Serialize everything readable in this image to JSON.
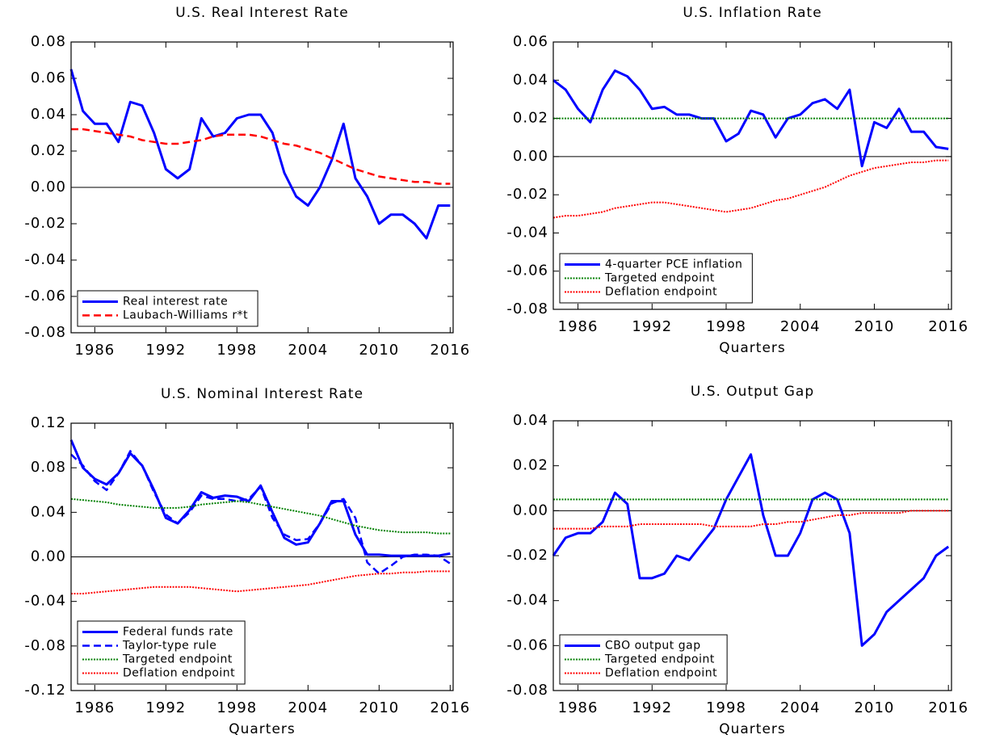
{
  "chart_data": [
    {
      "type": "line",
      "title": "U.S. Real Interest Rate",
      "x": [
        1984,
        1985,
        1986,
        1987,
        1988,
        1989,
        1990,
        1991,
        1992,
        1993,
        1994,
        1995,
        1996,
        1997,
        1998,
        1999,
        2000,
        2001,
        2002,
        2003,
        2004,
        2005,
        2006,
        2007,
        2008,
        2009,
        2010,
        2011,
        2012,
        2013,
        2014,
        2015,
        2016
      ],
      "xlim": [
        1984,
        2016.25
      ],
      "xticks": [
        1986,
        1992,
        1998,
        2004,
        2010,
        2016
      ],
      "ylim": [
        -0.08,
        0.08
      ],
      "yticks": [
        -0.08,
        -0.06,
        -0.04,
        -0.02,
        {
          "value": 0,
          "label": "0.00"
        },
        0.02,
        0.04,
        0.06,
        0.08
      ],
      "zero_line": true,
      "legend": "lower left",
      "series": [
        {
          "name": "Real interest rate",
          "color": "#0000ff",
          "style": "solid",
          "values": [
            0.065,
            0.042,
            0.035,
            0.035,
            0.025,
            0.047,
            0.045,
            0.03,
            0.01,
            0.005,
            0.01,
            0.038,
            0.028,
            0.03,
            0.038,
            0.04,
            0.04,
            0.03,
            0.008,
            -0.005,
            -0.01,
            0,
            0.015,
            0.035,
            0.005,
            -0.005,
            -0.02,
            -0.015,
            -0.015,
            -0.02,
            -0.028,
            -0.01,
            -0.01
          ]
        },
        {
          "name": "Laubach-Williams r*t",
          "color": "#ff0000",
          "style": "dashed",
          "values": [
            0.032,
            0.032,
            0.031,
            0.03,
            0.029,
            0.028,
            0.026,
            0.025,
            0.024,
            0.024,
            0.025,
            0.026,
            0.028,
            0.029,
            0.029,
            0.029,
            0.028,
            0.026,
            0.024,
            0.023,
            0.021,
            0.019,
            0.016,
            0.013,
            0.01,
            0.008,
            0.006,
            0.005,
            0.004,
            0.003,
            0.003,
            0.002,
            0.002
          ]
        }
      ]
    },
    {
      "type": "line",
      "title": "U.S. Inflation Rate",
      "xlabel": "Quarters",
      "x": [
        1984,
        1985,
        1986,
        1987,
        1988,
        1989,
        1990,
        1991,
        1992,
        1993,
        1994,
        1995,
        1996,
        1997,
        1998,
        1999,
        2000,
        2001,
        2002,
        2003,
        2004,
        2005,
        2006,
        2007,
        2008,
        2009,
        2010,
        2011,
        2012,
        2013,
        2014,
        2015,
        2016
      ],
      "xlim": [
        1984,
        2016.25
      ],
      "xticks": [
        1986,
        1992,
        1998,
        2004,
        2010,
        2016
      ],
      "ylim": [
        -0.08,
        0.06
      ],
      "yticks": [
        -0.08,
        -0.06,
        -0.04,
        -0.02,
        {
          "value": 0,
          "label": "0.00"
        },
        0.02,
        0.04,
        0.06
      ],
      "zero_line": true,
      "legend": "lower left",
      "series": [
        {
          "name": "4-quarter PCE inflation",
          "color": "#0000ff",
          "style": "solid",
          "values": [
            0.04,
            0.035,
            0.025,
            0.018,
            0.035,
            0.045,
            0.042,
            0.035,
            0.025,
            0.026,
            0.022,
            0.022,
            0.02,
            0.02,
            0.008,
            0.012,
            0.024,
            0.022,
            0.01,
            0.02,
            0.022,
            0.028,
            0.03,
            0.025,
            0.035,
            -0.005,
            0.018,
            0.015,
            0.025,
            0.013,
            0.013,
            0.005,
            0.004
          ]
        },
        {
          "name": "Targeted endpoint",
          "color": "#008000",
          "style": "dotted",
          "values": [
            0.02,
            0.02,
            0.02,
            0.02,
            0.02,
            0.02,
            0.02,
            0.02,
            0.02,
            0.02,
            0.02,
            0.02,
            0.02,
            0.02,
            0.02,
            0.02,
            0.02,
            0.02,
            0.02,
            0.02,
            0.02,
            0.02,
            0.02,
            0.02,
            0.02,
            0.02,
            0.02,
            0.02,
            0.02,
            0.02,
            0.02,
            0.02,
            0.02
          ]
        },
        {
          "name": "Deflation endpoint",
          "color": "#ff0000",
          "style": "dotted",
          "values": [
            -0.032,
            -0.031,
            -0.031,
            -0.03,
            -0.029,
            -0.027,
            -0.026,
            -0.025,
            -0.024,
            -0.024,
            -0.025,
            -0.026,
            -0.027,
            -0.028,
            -0.029,
            -0.028,
            -0.027,
            -0.025,
            -0.023,
            -0.022,
            -0.02,
            -0.018,
            -0.016,
            -0.013,
            -0.01,
            -0.008,
            -0.006,
            -0.005,
            -0.004,
            -0.003,
            -0.003,
            -0.002,
            -0.002
          ]
        }
      ]
    },
    {
      "type": "line",
      "title": "U.S. Nominal Interest Rate",
      "xlabel": "Quarters",
      "x": [
        1984,
        1985,
        1986,
        1987,
        1988,
        1989,
        1990,
        1991,
        1992,
        1993,
        1994,
        1995,
        1996,
        1997,
        1998,
        1999,
        2000,
        2001,
        2002,
        2003,
        2004,
        2005,
        2006,
        2007,
        2008,
        2009,
        2010,
        2011,
        2012,
        2013,
        2014,
        2015,
        2016
      ],
      "xlim": [
        1984,
        2016.25
      ],
      "xticks": [
        1986,
        1992,
        1998,
        2004,
        2010,
        2016
      ],
      "ylim": [
        -0.12,
        0.12
      ],
      "yticks": [
        -0.12,
        -0.08,
        -0.04,
        {
          "value": 0,
          "label": "0.00"
        },
        0.04,
        0.08,
        0.12
      ],
      "zero_line": true,
      "legend": "lower left",
      "series": [
        {
          "name": "Federal funds rate",
          "color": "#0000ff",
          "style": "solid",
          "values": [
            0.105,
            0.08,
            0.07,
            0.065,
            0.075,
            0.093,
            0.082,
            0.06,
            0.035,
            0.03,
            0.042,
            0.058,
            0.053,
            0.055,
            0.054,
            0.05,
            0.064,
            0.04,
            0.017,
            0.011,
            0.013,
            0.03,
            0.05,
            0.05,
            0.02,
            0.002,
            0.002,
            0.001,
            0.001,
            0.001,
            0.001,
            0.001,
            0.003
          ]
        },
        {
          "name": "Taylor-type rule",
          "color": "#0000ff",
          "style": "dashed",
          "values": [
            0.092,
            0.082,
            0.068,
            0.06,
            0.075,
            0.095,
            0.082,
            0.058,
            0.038,
            0.03,
            0.04,
            0.055,
            0.052,
            0.052,
            0.05,
            0.052,
            0.063,
            0.035,
            0.02,
            0.015,
            0.016,
            0.03,
            0.048,
            0.052,
            0.035,
            -0.005,
            -0.015,
            -0.008,
            0,
            0.002,
            0.002,
            0.001,
            -0.006
          ]
        },
        {
          "name": "Targeted endpoint",
          "color": "#008000",
          "style": "dotted",
          "values": [
            0.052,
            0.051,
            0.05,
            0.049,
            0.047,
            0.046,
            0.045,
            0.044,
            0.044,
            0.044,
            0.045,
            0.047,
            0.048,
            0.049,
            0.05,
            0.049,
            0.047,
            0.045,
            0.043,
            0.041,
            0.039,
            0.037,
            0.034,
            0.031,
            0.028,
            0.026,
            0.024,
            0.023,
            0.022,
            0.022,
            0.022,
            0.021,
            0.021
          ]
        },
        {
          "name": "Deflation endpoint",
          "color": "#ff0000",
          "style": "dotted",
          "values": [
            -0.033,
            -0.033,
            -0.032,
            -0.031,
            -0.03,
            -0.029,
            -0.028,
            -0.027,
            -0.027,
            -0.027,
            -0.027,
            -0.028,
            -0.029,
            -0.03,
            -0.031,
            -0.03,
            -0.029,
            -0.028,
            -0.027,
            -0.026,
            -0.025,
            -0.023,
            -0.021,
            -0.019,
            -0.017,
            -0.016,
            -0.015,
            -0.015,
            -0.014,
            -0.014,
            -0.013,
            -0.013,
            -0.013
          ]
        }
      ]
    },
    {
      "type": "line",
      "title": "U.S. Output Gap",
      "xlabel": "Quarters",
      "x": [
        1984,
        1985,
        1986,
        1987,
        1988,
        1989,
        1990,
        1991,
        1992,
        1993,
        1994,
        1995,
        1996,
        1997,
        1998,
        1999,
        2000,
        2001,
        2002,
        2003,
        2004,
        2005,
        2006,
        2007,
        2008,
        2009,
        2010,
        2011,
        2012,
        2013,
        2014,
        2015,
        2016
      ],
      "xlim": [
        1984,
        2016.25
      ],
      "xticks": [
        1986,
        1992,
        1998,
        2004,
        2010,
        2016
      ],
      "ylim": [
        -0.08,
        0.04
      ],
      "yticks": [
        -0.08,
        -0.06,
        -0.04,
        -0.02,
        {
          "value": 0,
          "label": "0.00"
        },
        0.02,
        0.04
      ],
      "zero_line": true,
      "legend": "lower left",
      "series": [
        {
          "name": "CBO output gap",
          "color": "#0000ff",
          "style": "solid",
          "values": [
            -0.02,
            -0.012,
            -0.01,
            -0.01,
            -0.005,
            0.008,
            0.003,
            -0.03,
            -0.03,
            -0.028,
            -0.02,
            -0.022,
            -0.015,
            -0.008,
            0.005,
            0.015,
            0.025,
            -0.002,
            -0.02,
            -0.02,
            -0.01,
            0.005,
            0.008,
            0.005,
            -0.01,
            -0.06,
            -0.055,
            -0.045,
            -0.04,
            -0.035,
            -0.03,
            -0.02,
            -0.016
          ]
        },
        {
          "name": "Targeted endpoint",
          "color": "#008000",
          "style": "dotted",
          "values": [
            0.005,
            0.005,
            0.005,
            0.005,
            0.005,
            0.005,
            0.005,
            0.005,
            0.005,
            0.005,
            0.005,
            0.005,
            0.005,
            0.005,
            0.005,
            0.005,
            0.005,
            0.005,
            0.005,
            0.005,
            0.005,
            0.005,
            0.005,
            0.005,
            0.005,
            0.005,
            0.005,
            0.005,
            0.005,
            0.005,
            0.005,
            0.005,
            0.005
          ]
        },
        {
          "name": "Deflation endpoint",
          "color": "#ff0000",
          "style": "dotted",
          "values": [
            -0.008,
            -0.008,
            -0.008,
            -0.008,
            -0.007,
            -0.007,
            -0.007,
            -0.006,
            -0.006,
            -0.006,
            -0.006,
            -0.006,
            -0.006,
            -0.007,
            -0.007,
            -0.007,
            -0.007,
            -0.006,
            -0.006,
            -0.005,
            -0.005,
            -0.004,
            -0.003,
            -0.002,
            -0.002,
            -0.001,
            -0.001,
            -0.001,
            -0.001,
            0,
            0,
            0,
            0
          ]
        }
      ]
    }
  ]
}
